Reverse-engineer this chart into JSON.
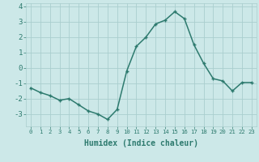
{
  "xlabel": "Humidex (Indice chaleur)",
  "x": [
    0,
    1,
    2,
    3,
    4,
    5,
    6,
    7,
    8,
    9,
    10,
    11,
    12,
    13,
    14,
    15,
    16,
    17,
    18,
    19,
    20,
    21,
    22,
    23
  ],
  "y": [
    -1.3,
    -1.6,
    -1.8,
    -2.1,
    -2.0,
    -2.4,
    -2.8,
    -3.0,
    -3.35,
    -2.7,
    -0.2,
    1.4,
    2.0,
    2.85,
    3.1,
    3.65,
    3.2,
    1.5,
    0.3,
    -0.7,
    -0.85,
    -1.5,
    -0.95,
    -0.95
  ],
  "line_color": "#2d7a6e",
  "marker": "+",
  "marker_size": 3,
  "marker_edge_width": 1.0,
  "bg_color": "#cce8e8",
  "grid_color": "#aacece",
  "ylim": [
    -3.8,
    4.2
  ],
  "yticks": [
    -3,
    -2,
    -1,
    0,
    1,
    2,
    3,
    4
  ],
  "xtick_fontsize": 5.2,
  "ytick_fontsize": 6.5,
  "xlabel_fontsize": 7,
  "linewidth": 1.1
}
